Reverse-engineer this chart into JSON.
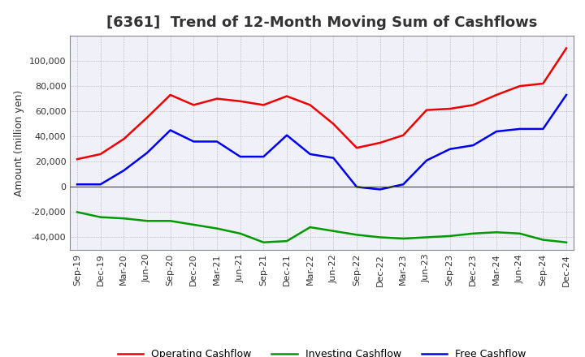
{
  "title": "[6361]  Trend of 12-Month Moving Sum of Cashflows",
  "ylabel": "Amount (million yen)",
  "background_color": "#ffffff",
  "grid_color": "#888888",
  "plot_bg_color": "#f0f0f8",
  "xlim_labels": [
    "Sep-19",
    "Dec-19",
    "Mar-20",
    "Jun-20",
    "Sep-20",
    "Dec-20",
    "Mar-21",
    "Jun-21",
    "Sep-21",
    "Dec-21",
    "Mar-22",
    "Jun-22",
    "Sep-22",
    "Dec-22",
    "Mar-23",
    "Jun-23",
    "Sep-23",
    "Dec-23",
    "Mar-24",
    "Jun-24",
    "Sep-24",
    "Dec-24"
  ],
  "ylim": [
    -50000,
    120000
  ],
  "yticks": [
    -40000,
    -20000,
    0,
    20000,
    40000,
    60000,
    80000,
    100000
  ],
  "operating": [
    22000,
    26000,
    38000,
    55000,
    73000,
    65000,
    70000,
    68000,
    65000,
    72000,
    65000,
    50000,
    31000,
    35000,
    41000,
    61000,
    62000,
    65000,
    73000,
    80000,
    82000,
    110000
  ],
  "investing": [
    -20000,
    -24000,
    -25000,
    -27000,
    -27000,
    -30000,
    -33000,
    -37000,
    -44000,
    -43000,
    -32000,
    -35000,
    -38000,
    -40000,
    -41000,
    -40000,
    -39000,
    -37000,
    -36000,
    -37000,
    -42000,
    -44000
  ],
  "free": [
    2000,
    2000,
    13000,
    27000,
    45000,
    36000,
    36000,
    24000,
    24000,
    41000,
    26000,
    23000,
    0,
    -2000,
    2000,
    21000,
    30000,
    33000,
    44000,
    46000,
    46000,
    73000
  ],
  "op_color": "#ee0000",
  "inv_color": "#009900",
  "free_color": "#0000ee",
  "line_width": 1.8,
  "title_fontsize": 13,
  "axis_fontsize": 9,
  "tick_fontsize": 8,
  "legend_fontsize": 9
}
